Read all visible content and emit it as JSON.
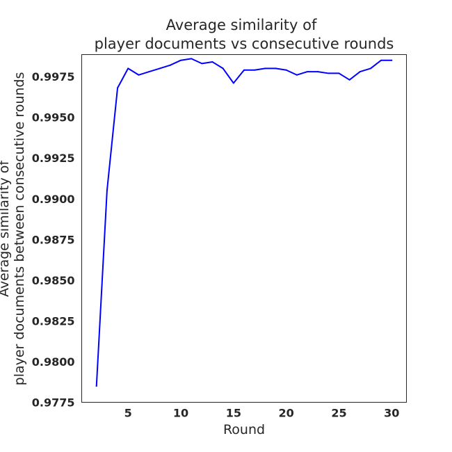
{
  "chart_data": {
    "type": "line",
    "title_lines": [
      "Average similarity of",
      "player documents vs consecutive rounds"
    ],
    "xlabel": "Round",
    "ylabel_lines": [
      "Average similarity of",
      "player documents between consecutive rounds"
    ],
    "xlim": [
      0.6,
      31.4
    ],
    "ylim": [
      0.9775,
      0.99885
    ],
    "x_ticks": [
      5,
      10,
      15,
      20,
      25,
      30
    ],
    "x_tick_labels": [
      "5",
      "10",
      "15",
      "20",
      "25",
      "30"
    ],
    "y_ticks": [
      0.9775,
      0.98,
      0.9825,
      0.985,
      0.9875,
      0.99,
      0.9925,
      0.995,
      0.9975
    ],
    "y_tick_labels": [
      "0.9775",
      "0.9800",
      "0.9825",
      "0.9850",
      "0.9875",
      "0.9900",
      "0.9925",
      "0.9950",
      "0.9975"
    ],
    "grid": false,
    "line_color": "#0000ff",
    "series": [
      {
        "x": [
          2,
          3,
          4,
          5,
          6,
          7,
          8,
          9,
          10,
          11,
          12,
          13,
          14,
          15,
          16,
          17,
          18,
          19,
          20,
          21,
          22,
          23,
          24,
          25,
          26,
          27,
          28,
          29,
          30
        ],
        "values": [
          0.9785,
          0.9905,
          0.9968,
          0.998,
          0.9976,
          0.9978,
          0.998,
          0.9982,
          0.9985,
          0.9986,
          0.9983,
          0.9984,
          0.998,
          0.9971,
          0.9979,
          0.9979,
          0.998,
          0.998,
          0.9979,
          0.9976,
          0.9978,
          0.9978,
          0.9977,
          0.9977,
          0.9973,
          0.9978,
          0.998,
          0.9985,
          0.9985
        ]
      }
    ]
  }
}
